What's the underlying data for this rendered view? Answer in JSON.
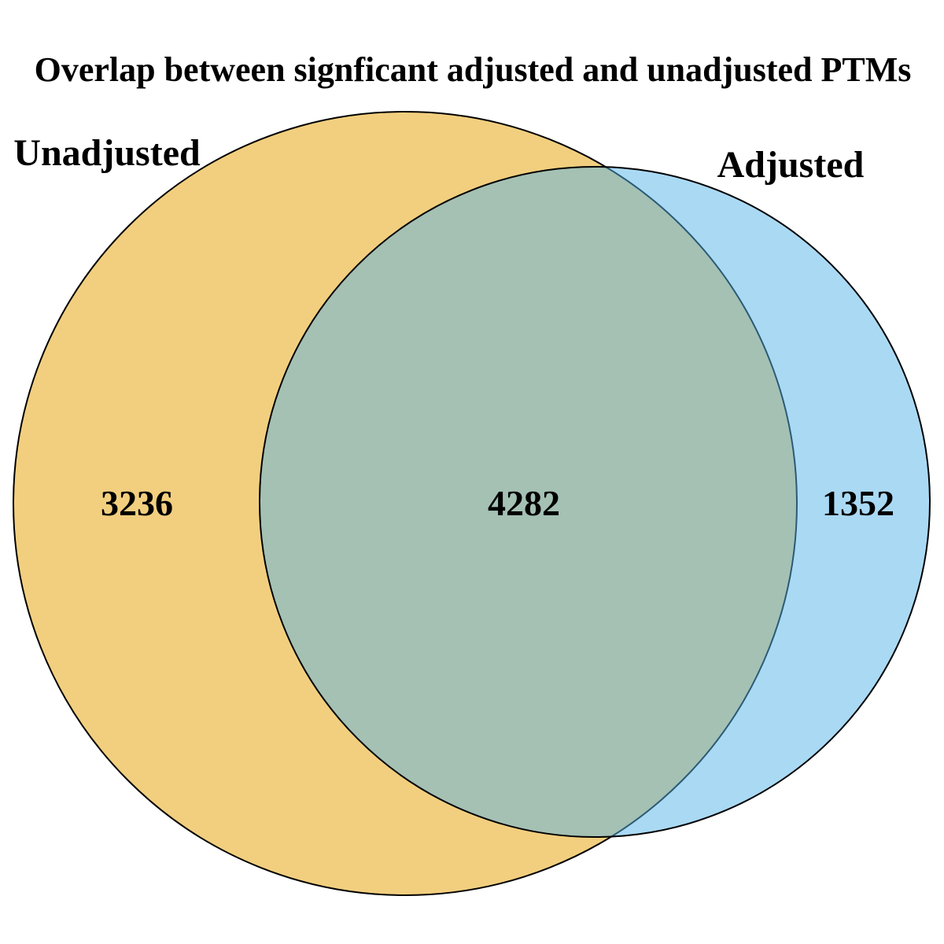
{
  "title": "Overlap between signficant adjusted and unadjusted PTMs",
  "sets": [
    {
      "name": "Unadjusted",
      "color": "#E69F00",
      "opacity": 0.5
    },
    {
      "name": "Adjusted",
      "color": "#56B4E9",
      "opacity": 0.5
    }
  ],
  "regions": {
    "unadjusted_only": "3236",
    "both": "4282",
    "adjusted_only": "1352"
  }
}
